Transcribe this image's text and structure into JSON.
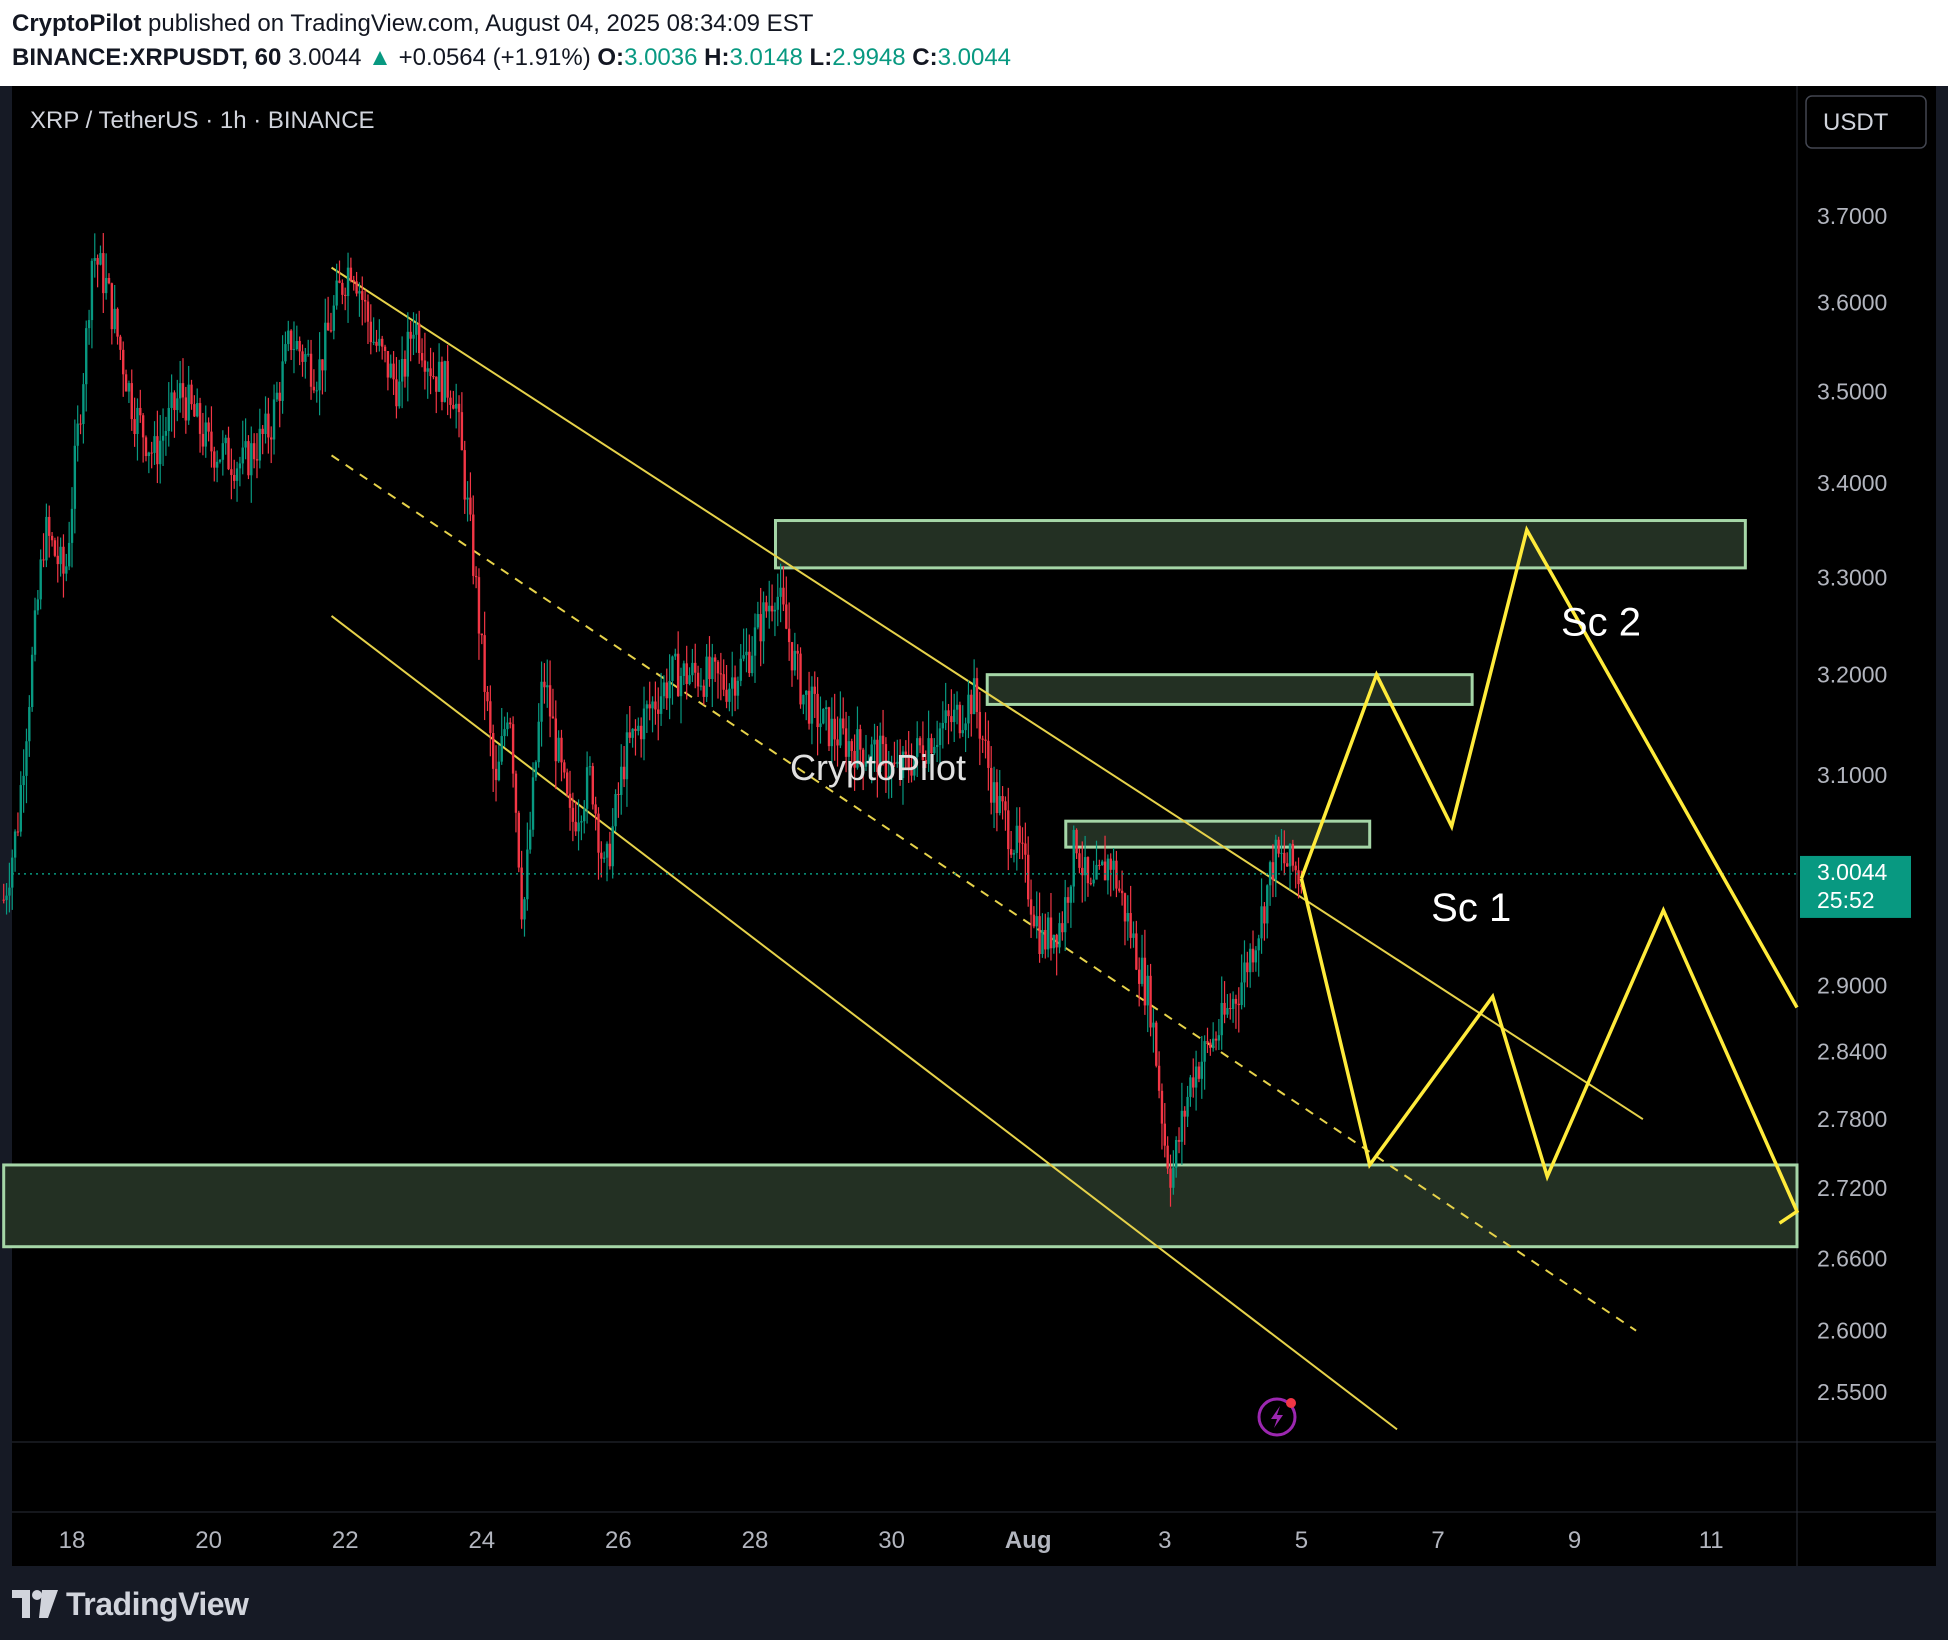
{
  "header": {
    "author": "CryptoPilot",
    "published_text": "published on TradingView.com, August 04, 2025 08:34:09 EST",
    "symbol": "BINANCE:XRPUSDT, 60",
    "last": "3.0044",
    "change_arrow": "▲",
    "change": "+0.0564 (+1.91%)",
    "o_label": "O:",
    "o_value": "3.0036",
    "h_label": "H:",
    "h_value": "3.0148",
    "l_label": "L:",
    "l_value": "2.9948",
    "c_label": "C:",
    "c_value": "3.0044"
  },
  "colors": {
    "up": "#089981",
    "down": "#f23645",
    "channel": "#e6d24a",
    "projection": "#ffeb3b",
    "zone_fill": "#233023",
    "zone_stroke": "#a5d6a7",
    "price_tag": "#089981",
    "chart_bg": "#000000",
    "page_bg": "#161a25"
  },
  "chart_data": {
    "type": "candlestick",
    "title": "XRP / TetherUS · 1h · BINANCE",
    "currency_label": "USDT",
    "x_axis_labels": [
      "18",
      "20",
      "22",
      "24",
      "26",
      "28",
      "30",
      "Aug",
      "3",
      "5",
      "7",
      "9",
      "11"
    ],
    "x_axis_days": [
      18,
      20,
      22,
      24,
      26,
      28,
      30,
      32,
      34,
      36,
      38,
      40,
      42
    ],
    "x_range_days": [
      17.0,
      43.3
    ],
    "y_axis_ticks": [
      "3.7000",
      "3.6000",
      "3.5000",
      "3.4000",
      "3.3000",
      "3.2000",
      "3.1000",
      "2.9000",
      "2.8400",
      "2.7800",
      "2.7200",
      "2.6600",
      "2.6000",
      "2.5500"
    ],
    "y_range": [
      2.52,
      3.8
    ],
    "y_scale": "log",
    "current_price": "3.0044",
    "countdown": "25:52",
    "price_path": [
      [
        17.0,
        2.98
      ],
      [
        17.2,
        3.05
      ],
      [
        17.6,
        3.35
      ],
      [
        17.9,
        3.3
      ],
      [
        18.2,
        3.55
      ],
      [
        18.3,
        3.66
      ],
      [
        18.5,
        3.62
      ],
      [
        18.9,
        3.48
      ],
      [
        19.2,
        3.43
      ],
      [
        19.6,
        3.5
      ],
      [
        20.0,
        3.44
      ],
      [
        20.5,
        3.42
      ],
      [
        20.9,
        3.46
      ],
      [
        21.2,
        3.56
      ],
      [
        21.6,
        3.52
      ],
      [
        21.9,
        3.61
      ],
      [
        22.1,
        3.65
      ],
      [
        22.4,
        3.56
      ],
      [
        22.8,
        3.5
      ],
      [
        23.0,
        3.58
      ],
      [
        23.3,
        3.52
      ],
      [
        23.6,
        3.5
      ],
      [
        23.9,
        3.3
      ],
      [
        24.0,
        3.22
      ],
      [
        24.2,
        3.08
      ],
      [
        24.4,
        3.18
      ],
      [
        24.6,
        2.96
      ],
      [
        24.9,
        3.2
      ],
      [
        25.3,
        3.05
      ],
      [
        25.6,
        3.1
      ],
      [
        25.8,
        3.0
      ],
      [
        26.1,
        3.12
      ],
      [
        26.4,
        3.16
      ],
      [
        26.8,
        3.2
      ],
      [
        27.2,
        3.2
      ],
      [
        27.6,
        3.19
      ],
      [
        27.9,
        3.22
      ],
      [
        28.3,
        3.29
      ],
      [
        28.7,
        3.18
      ],
      [
        29.0,
        3.15
      ],
      [
        29.4,
        3.13
      ],
      [
        29.8,
        3.12
      ],
      [
        30.1,
        3.1
      ],
      [
        30.6,
        3.14
      ],
      [
        31.0,
        3.16
      ],
      [
        31.2,
        3.18
      ],
      [
        31.5,
        3.08
      ],
      [
        31.9,
        3.02
      ],
      [
        32.2,
        2.94
      ],
      [
        32.5,
        2.96
      ],
      [
        32.7,
        3.04
      ],
      [
        32.9,
        2.98
      ],
      [
        33.2,
        3.02
      ],
      [
        33.5,
        2.95
      ],
      [
        33.8,
        2.88
      ],
      [
        34.0,
        2.76
      ],
      [
        34.1,
        2.73
      ],
      [
        34.4,
        2.82
      ],
      [
        34.8,
        2.86
      ],
      [
        35.1,
        2.9
      ],
      [
        35.4,
        2.96
      ],
      [
        35.6,
        3.02
      ],
      [
        35.9,
        3.01
      ],
      [
        36.0,
        3.0
      ]
    ],
    "channel": {
      "upper": [
        [
          21.8,
          3.64
        ],
        [
          41.0,
          2.78
        ]
      ],
      "middle": [
        [
          21.8,
          3.43
        ],
        [
          40.9,
          2.6
        ]
      ],
      "lower": [
        [
          21.8,
          3.26
        ],
        [
          37.4,
          2.52
        ]
      ]
    },
    "zones": [
      {
        "x1": 28.3,
        "x2": 42.5,
        "y_low": 3.31,
        "y_high": 3.36
      },
      {
        "x1": 31.4,
        "x2": 38.5,
        "y_low": 3.17,
        "y_high": 3.2
      },
      {
        "x1": 32.55,
        "x2": 37.0,
        "y_low": 3.03,
        "y_high": 3.055
      },
      {
        "x1": 17.0,
        "x2": 43.3,
        "y_low": 2.67,
        "y_high": 2.74
      }
    ],
    "scenarios": [
      {
        "name": "Sc 2",
        "path": [
          [
            36.0,
            3.0
          ],
          [
            37.1,
            3.2
          ],
          [
            38.2,
            3.05
          ],
          [
            39.3,
            3.35
          ],
          [
            43.3,
            2.88
          ]
        ]
      },
      {
        "name": "Sc 1",
        "path": [
          [
            36.0,
            3.0
          ],
          [
            37.0,
            2.74
          ],
          [
            38.8,
            2.89
          ],
          [
            39.6,
            2.73
          ],
          [
            41.3,
            2.97
          ],
          [
            43.3,
            2.7
          ],
          [
            43.0,
            2.69
          ]
        ]
      }
    ],
    "watermark": "CryptoPilot"
  },
  "footer": {
    "brand": "TradingView"
  }
}
